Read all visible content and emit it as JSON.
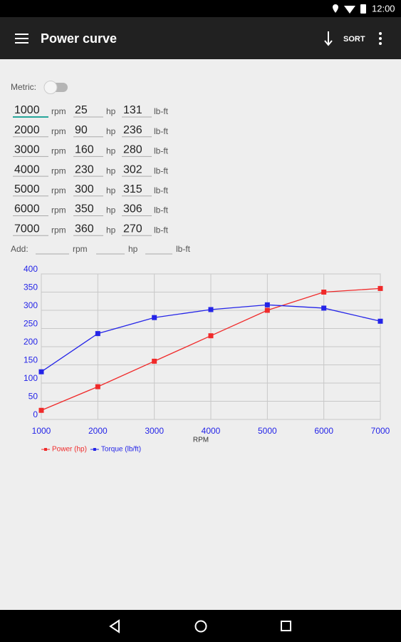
{
  "status_bar": {
    "time": "12:00"
  },
  "toolbar": {
    "title": "Power curve",
    "sort": "SORT"
  },
  "form": {
    "metric_label": "Metric:",
    "units": {
      "rpm": "rpm",
      "hp": "hp",
      "torque": "lb-ft"
    },
    "rows": [
      [
        "1000",
        "25",
        "131"
      ],
      [
        "2000",
        "90",
        "236"
      ],
      [
        "3000",
        "160",
        "280"
      ],
      [
        "4000",
        "230",
        "302"
      ],
      [
        "5000",
        "300",
        "315"
      ],
      [
        "6000",
        "350",
        "306"
      ],
      [
        "7000",
        "360",
        "270"
      ]
    ],
    "add_label": "Add:"
  },
  "chart_data": {
    "type": "line",
    "xlabel": "RPM",
    "x": [
      1000,
      2000,
      3000,
      4000,
      5000,
      6000,
      7000
    ],
    "series": [
      {
        "name": "Power (hp)",
        "color": "#f02a2a",
        "values": [
          25,
          90,
          160,
          230,
          300,
          350,
          360
        ]
      },
      {
        "name": "Torque (lb/ft)",
        "color": "#2424e8",
        "values": [
          131,
          236,
          280,
          302,
          315,
          306,
          270
        ]
      }
    ],
    "xlim": [
      1000,
      7000
    ],
    "ylim": [
      0,
      400
    ],
    "xticks": [
      1000,
      2000,
      3000,
      4000,
      5000,
      6000,
      7000
    ],
    "yticks": [
      0,
      50,
      100,
      150,
      200,
      250,
      300,
      350,
      400
    ],
    "grid": true,
    "legend": "bottom left"
  }
}
